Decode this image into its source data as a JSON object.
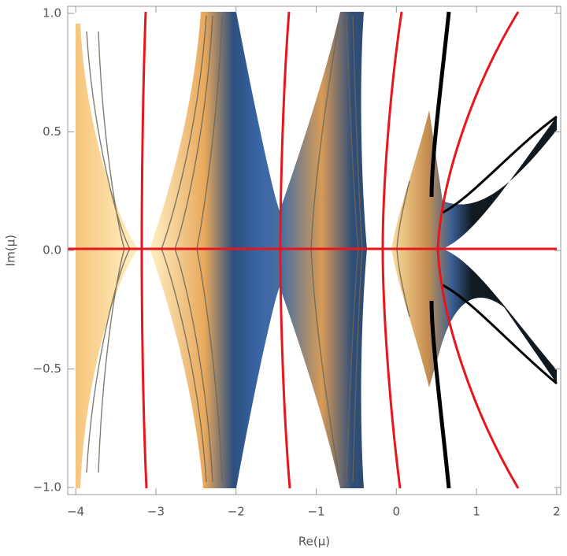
{
  "chart_data": {
    "type": "contour",
    "x_label": "Re(μ)",
    "y_label": "Im(μ)",
    "xlim": [
      -4.1,
      2.05
    ],
    "ylim": [
      -1.03,
      1.03
    ],
    "xticks": [
      {
        "value": -4,
        "label": "−4"
      },
      {
        "value": -3,
        "label": "−3"
      },
      {
        "value": -2,
        "label": "−2"
      },
      {
        "value": -1,
        "label": "−1"
      },
      0,
      1,
      2
    ],
    "yticks": [
      {
        "value": -1,
        "label": "−1.0"
      },
      {
        "value": -0.5,
        "label": "−0.5"
      },
      {
        "value": 0,
        "label": "0.0"
      },
      {
        "value": 0.5,
        "label": "0.5"
      },
      {
        "value": 1,
        "label": "1.0"
      }
    ]
  }
}
